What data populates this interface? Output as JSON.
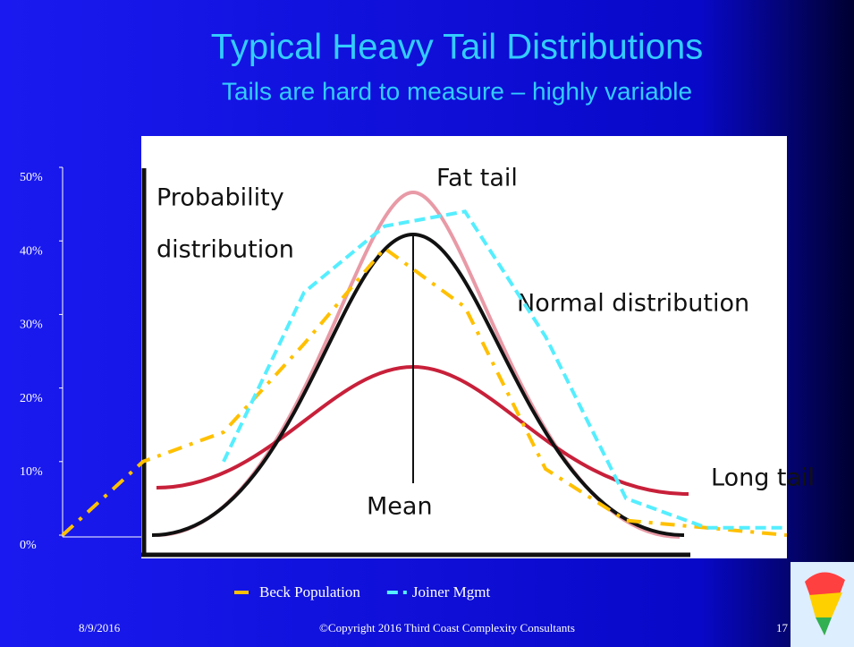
{
  "chart_data": {
    "type": "line",
    "title": "Typical Heavy Tail Distributions",
    "subtitle": "Tails are hard to measure – highly variable",
    "categories": [
      null,
      null,
      null,
      null,
      null,
      null,
      null,
      null,
      null,
      null
    ],
    "series": [
      {
        "name": "Beck Population",
        "color": "#ffc000",
        "dash": "dashdot",
        "values": [
          0,
          10,
          14,
          26,
          39,
          31,
          9,
          2,
          1,
          0
        ]
      },
      {
        "name": "Joiner Mgmt",
        "color": "#55eeff",
        "dash": "dash",
        "values": [
          null,
          null,
          10,
          33,
          42,
          44,
          27,
          5,
          1,
          1
        ]
      }
    ],
    "ylim": [
      0,
      50
    ],
    "yticks": [
      {
        "value": 0,
        "label": "0%"
      },
      {
        "value": 10,
        "label": "10%"
      },
      {
        "value": 20,
        "label": "20%"
      },
      {
        "value": 30,
        "label": "30%"
      },
      {
        "value": 40,
        "label": "40%"
      },
      {
        "value": 50,
        "label": "50%"
      }
    ],
    "legend": "bottom",
    "annotations": [
      "Probability",
      "distribution",
      "Fat tail",
      "Normal distribution",
      "Long tail",
      "Mean"
    ]
  },
  "footer": {
    "date": "8/9/2016",
    "copyright": "©Copyright 2016  Third Coast Complexity Consultants",
    "page": "17"
  }
}
